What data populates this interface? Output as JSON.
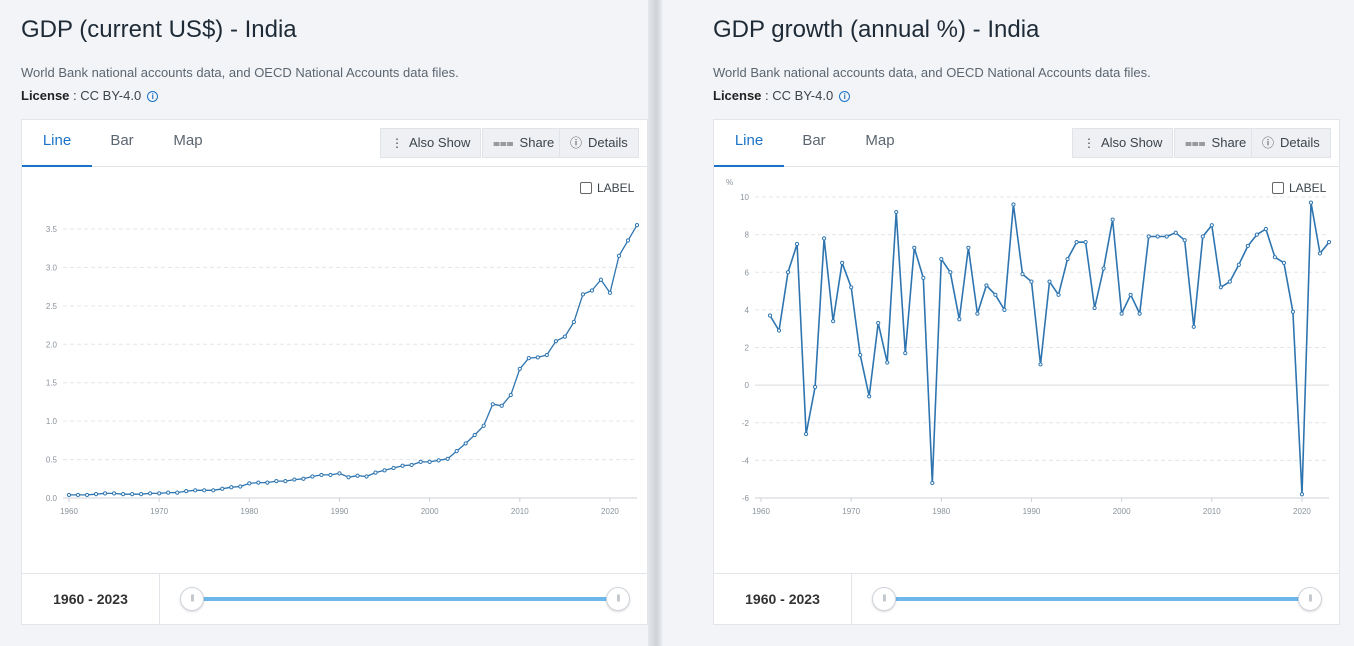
{
  "panels": [
    {
      "title": "GDP (current US$) - India",
      "source": "World Bank national accounts data, and OECD National Accounts data files.",
      "license_label": "License",
      "license_value": " : CC BY-4.0",
      "tabs": [
        "Line",
        "Bar",
        "Map"
      ],
      "active_tab": "Line",
      "buttons": {
        "also_show": "Also Show",
        "share": "Share",
        "details": "Details"
      },
      "label_toggle": "LABEL",
      "range": "1960 - 2023"
    },
    {
      "title": "GDP growth (annual %) - India",
      "source": "World Bank national accounts data, and OECD National Accounts data files.",
      "license_label": "License",
      "license_value": " : CC BY-4.0",
      "tabs": [
        "Line",
        "Bar",
        "Map"
      ],
      "active_tab": "Line",
      "buttons": {
        "also_show": "Also Show",
        "share": "Share",
        "details": "Details"
      },
      "label_toggle": "LABEL",
      "range": "1960 - 2023"
    }
  ],
  "colors": {
    "line": "#2e75b0",
    "accent": "#1a73c8",
    "slider": "#6db7ea"
  },
  "icons": {
    "info": "info-icon",
    "also_show": "vertical-dots-icon",
    "share": "share-icon",
    "details": "info-circle-icon"
  },
  "chart_data": [
    {
      "type": "line",
      "title": "GDP (current US$) - India",
      "ylabel": "",
      "xlim": [
        1960,
        2023
      ],
      "ylim": [
        0,
        3.5
      ],
      "yticks": [
        0.0,
        0.5,
        1.0,
        1.5,
        2.0,
        2.5,
        3.0,
        3.5
      ],
      "ytick_labels": [
        "0.0",
        "0.5",
        "1.0",
        "1.5",
        "2.0",
        "2.5",
        "3.0",
        "3.5"
      ],
      "xticks": [
        1960,
        1970,
        1980,
        1990,
        2000,
        2010,
        2020
      ],
      "grid": true,
      "x": [
        1960,
        1961,
        1962,
        1963,
        1964,
        1965,
        1966,
        1967,
        1968,
        1969,
        1970,
        1971,
        1972,
        1973,
        1974,
        1975,
        1976,
        1977,
        1978,
        1979,
        1980,
        1981,
        1982,
        1983,
        1984,
        1985,
        1986,
        1987,
        1988,
        1989,
        1990,
        1991,
        1992,
        1993,
        1994,
        1995,
        1996,
        1997,
        1998,
        1999,
        2000,
        2001,
        2002,
        2003,
        2004,
        2005,
        2006,
        2007,
        2008,
        2009,
        2010,
        2011,
        2012,
        2013,
        2014,
        2015,
        2016,
        2017,
        2018,
        2019,
        2020,
        2021,
        2022,
        2023
      ],
      "values": [
        0.04,
        0.04,
        0.04,
        0.05,
        0.06,
        0.06,
        0.05,
        0.05,
        0.05,
        0.06,
        0.06,
        0.07,
        0.07,
        0.09,
        0.1,
        0.1,
        0.1,
        0.12,
        0.14,
        0.15,
        0.19,
        0.2,
        0.2,
        0.22,
        0.22,
        0.24,
        0.25,
        0.28,
        0.3,
        0.3,
        0.32,
        0.27,
        0.29,
        0.28,
        0.33,
        0.36,
        0.39,
        0.42,
        0.43,
        0.47,
        0.47,
        0.49,
        0.51,
        0.61,
        0.71,
        0.82,
        0.94,
        1.22,
        1.2,
        1.34,
        1.68,
        1.82,
        1.83,
        1.86,
        2.04,
        2.1,
        2.29,
        2.65,
        2.7,
        2.84,
        2.67,
        3.15,
        3.35,
        3.55
      ]
    },
    {
      "type": "line",
      "title": "GDP growth (annual %) - India",
      "ylabel": "%",
      "xlim": [
        1960,
        2023
      ],
      "ylim": [
        -6,
        10
      ],
      "yticks": [
        -6,
        -4,
        -2,
        0,
        2,
        4,
        6,
        8,
        10
      ],
      "ytick_labels": [
        "-6",
        "-4",
        "-2",
        "0",
        "2",
        "4",
        "6",
        "8",
        "10"
      ],
      "xticks": [
        1960,
        1970,
        1980,
        1990,
        2000,
        2010,
        2020
      ],
      "grid": true,
      "x": [
        1961,
        1962,
        1963,
        1964,
        1965,
        1966,
        1967,
        1968,
        1969,
        1970,
        1971,
        1972,
        1973,
        1974,
        1975,
        1976,
        1977,
        1978,
        1979,
        1980,
        1981,
        1982,
        1983,
        1984,
        1985,
        1986,
        1987,
        1988,
        1989,
        1990,
        1991,
        1992,
        1993,
        1994,
        1995,
        1996,
        1997,
        1998,
        1999,
        2000,
        2001,
        2002,
        2003,
        2004,
        2005,
        2006,
        2007,
        2008,
        2009,
        2010,
        2011,
        2012,
        2013,
        2014,
        2015,
        2016,
        2017,
        2018,
        2019,
        2020,
        2021,
        2022,
        2023
      ],
      "values": [
        3.7,
        2.9,
        6.0,
        7.5,
        -2.6,
        -0.1,
        7.8,
        3.4,
        6.5,
        5.2,
        1.6,
        -0.6,
        3.3,
        1.2,
        9.2,
        1.7,
        7.3,
        5.7,
        -5.2,
        6.7,
        6.0,
        3.5,
        7.3,
        3.8,
        5.3,
        4.8,
        4.0,
        9.6,
        5.9,
        5.5,
        1.1,
        5.5,
        4.8,
        6.7,
        7.6,
        7.6,
        4.1,
        6.2,
        8.8,
        3.8,
        4.8,
        3.8,
        7.9,
        7.9,
        7.9,
        8.1,
        7.7,
        3.1,
        7.9,
        8.5,
        5.2,
        5.5,
        6.4,
        7.4,
        8.0,
        8.3,
        6.8,
        6.5,
        3.9,
        -5.8,
        9.7,
        7.0,
        7.6
      ]
    }
  ]
}
